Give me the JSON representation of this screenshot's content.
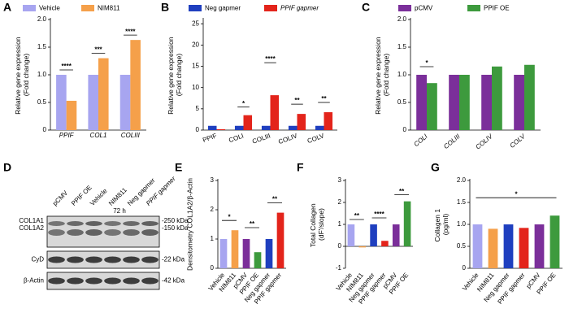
{
  "chart_data": [
    {
      "type": "bar",
      "label": "A",
      "ylabel": "Relative gene expression (Fold change)",
      "categories": [
        "PPIF",
        "COL1",
        "COLIII"
      ],
      "series": [
        {
          "name": "Vehicle",
          "color": "#a7a5f0",
          "values": [
            1,
            1,
            1
          ]
        },
        {
          "name": "NIM811",
          "color": "#f5a04a",
          "values": [
            0.53,
            1.3,
            1.63
          ]
        }
      ],
      "ylim": [
        0,
        2
      ],
      "yticks": [
        0,
        0.5,
        {
          "value": 1,
          "label": "1.0"
        },
        1.5,
        {
          "value": 2,
          "label": "2.0"
        }
      ],
      "annotations": [
        "****",
        "***",
        "****"
      ]
    },
    {
      "type": "bar",
      "label": "B",
      "ylabel": "Relative gene expression (Fold change)",
      "categories": [
        "PPIF",
        "COLI",
        "COLIII",
        "COLIV",
        "COLV"
      ],
      "series": [
        {
          "name": "Neg gapmer",
          "color": "#1f3fbf",
          "values": [
            1,
            1,
            1,
            1,
            1
          ]
        },
        {
          "name": "PPIF gapmer",
          "color": "#e3241b",
          "values": [
            0.2,
            3.5,
            8.2,
            3.8,
            4.2
          ]
        }
      ],
      "ylim": [
        0,
        26
      ],
      "yticks": [
        0,
        5,
        10,
        15,
        20,
        25
      ],
      "annotations": [
        "*",
        "****",
        "**",
        "**"
      ]
    },
    {
      "type": "bar",
      "label": "C",
      "ylabel": "Relative gene expression (Fold change)",
      "categories": [
        "COLI",
        "COLIII",
        "COLIV",
        "COLV"
      ],
      "series": [
        {
          "name": "pCMV",
          "color": "#7b2f9a",
          "values": [
            1,
            1,
            1,
            1
          ]
        },
        {
          "name": "PPIF OE",
          "color": "#3d9a3d",
          "values": [
            0.85,
            1.0,
            1.15,
            1.18
          ]
        }
      ],
      "ylim": [
        0,
        2
      ],
      "yticks": [
        0,
        0.5,
        {
          "value": 1,
          "label": "1.0"
        },
        1.5,
        {
          "value": 2,
          "label": "2.0"
        }
      ],
      "annotations": [
        "*"
      ]
    },
    {
      "type": "bar",
      "label": "E",
      "ylabel": "Densitometry COL1A2/β-Actin",
      "categories": [
        "Vehicle",
        "NIM811",
        "pCMV",
        "PPIF OE",
        "Neg gapmer",
        "PPIF gapmer"
      ],
      "values": [
        1,
        1.3,
        1,
        0.55,
        1,
        1.9
      ],
      "colors": [
        "#a7a5f0",
        "#f5a04a",
        "#7b2f9a",
        "#3d9a3d",
        "#1f3fbf",
        "#e3241b"
      ],
      "ylim": [
        0,
        3
      ],
      "yticks": [
        0,
        1,
        2,
        3
      ],
      "annotations": [
        "*",
        "**",
        "**"
      ]
    },
    {
      "type": "bar",
      "label": "F",
      "ylabel": "Total Collagen (dF'/slope)",
      "categories": [
        "Vehicle",
        "NIM811",
        "Neg gapmer",
        "PPIF gapmer",
        "pCMV",
        "PPIF OE"
      ],
      "values": [
        1,
        -0.05,
        1,
        0.25,
        1,
        2.05
      ],
      "colors": [
        "#a7a5f0",
        "#f5a04a",
        "#1f3fbf",
        "#e3241b",
        "#7b2f9a",
        "#3d9a3d"
      ],
      "ylim": [
        -1,
        3
      ],
      "yticks": [
        -1,
        0,
        1,
        2,
        3
      ],
      "annotations": [
        "**",
        "****",
        "**"
      ]
    },
    {
      "type": "bar",
      "label": "G",
      "ylabel": "Collagen 1 (pg/ml)",
      "categories": [
        "Vehicle",
        "NIM811",
        "Neg gapmer",
        "PPIF gapmer",
        "pCMV",
        "PPIF OE"
      ],
      "values": [
        1,
        0.9,
        1,
        0.92,
        1,
        1.2
      ],
      "colors": [
        "#a7a5f0",
        "#f5a04a",
        "#1f3fbf",
        "#e3241b",
        "#7b2f9a",
        "#3d9a3d"
      ],
      "ylim": [
        0,
        2
      ],
      "yticks": [
        0,
        0.5,
        {
          "value": 1,
          "label": "1.0"
        },
        1.5,
        {
          "value": 2,
          "label": "2.0"
        }
      ],
      "annotations": [
        "*"
      ]
    }
  ],
  "blot": {
    "label": "D",
    "lanes": [
      "pCMV",
      "PPIF OE",
      "Vehicle",
      "NIM811",
      "Neg gapmer",
      "PPIF gapmer"
    ],
    "time": "72 h",
    "rows": [
      {
        "names": [
          "COL1A1",
          "COL1A2"
        ],
        "markers": [
          "-250 kDa",
          "-150 kDa"
        ]
      },
      {
        "names": [
          "CyD"
        ],
        "markers": [
          "-22 kDa"
        ]
      },
      {
        "names": [
          "β-Actin"
        ],
        "markers": [
          "-42 kDa"
        ]
      }
    ]
  }
}
